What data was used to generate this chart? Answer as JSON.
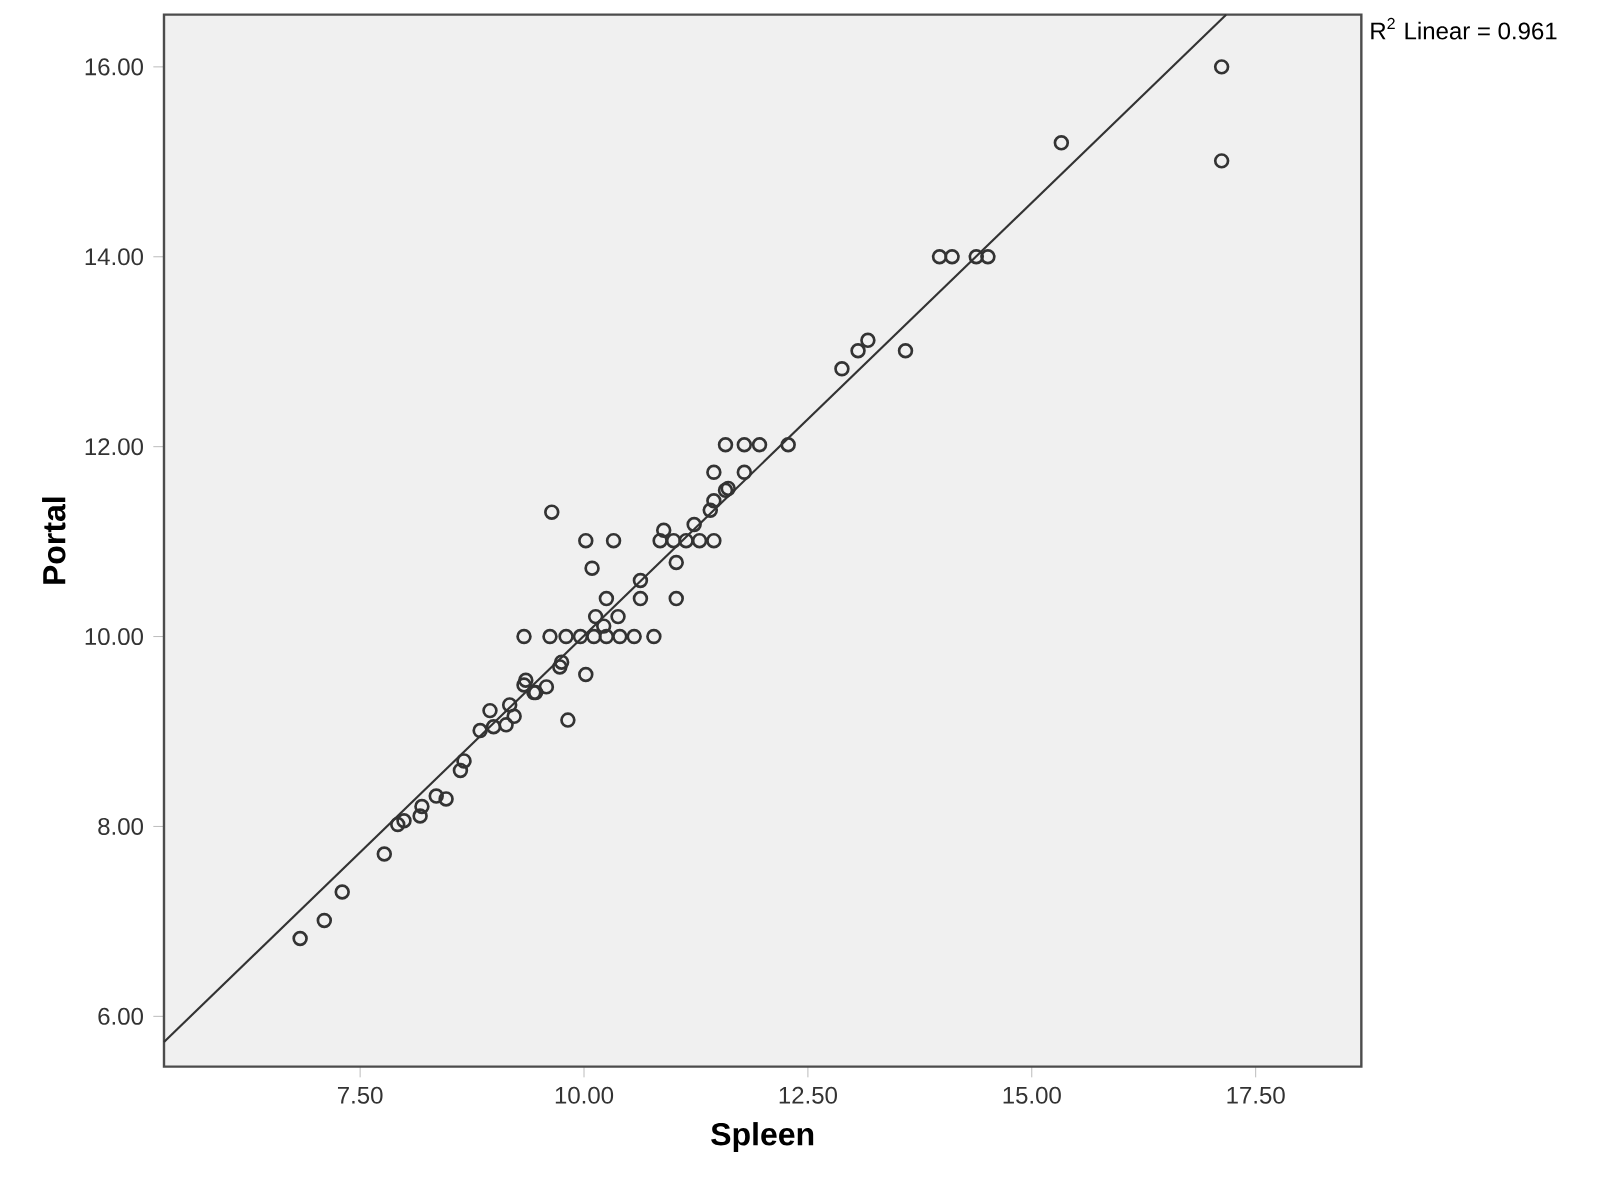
{
  "chart_data": {
    "type": "scatter",
    "xlabel": "Spleen",
    "ylabel": "Portal",
    "xlim": [
      5.31,
      18.68
    ],
    "ylim": [
      5.47,
      16.55
    ],
    "xticks": [
      {
        "value": 7.5,
        "label": "7.50"
      },
      {
        "value": 10,
        "label": "10.00"
      },
      {
        "value": 12.5,
        "label": "12.50"
      },
      {
        "value": 15,
        "label": "15.00"
      },
      {
        "value": 17.5,
        "label": "17.50"
      }
    ],
    "yticks": [
      {
        "value": 6,
        "label": "6.00"
      },
      {
        "value": 8,
        "label": "8.00"
      },
      {
        "value": 10,
        "label": "10.00"
      },
      {
        "value": 12,
        "label": "12.00"
      },
      {
        "value": 14,
        "label": "14.00"
      },
      {
        "value": 16,
        "label": "16.00"
      }
    ],
    "series": [
      {
        "marker": "circle",
        "color": "#333333",
        "x": [
          6.83,
          7.1,
          7.3,
          7.77,
          7.92,
          7.99,
          8.17,
          8.19,
          8.35,
          8.46,
          8.62,
          8.66,
          8.95,
          8.84,
          8.99,
          9.13,
          9.22,
          9.17,
          9.33,
          9.44,
          9.58,
          9.73,
          9.82,
          10.02,
          9.64,
          10.02,
          10.33,
          10.09,
          10.89,
          10.85,
          11.0,
          11.14,
          11.29,
          11.45,
          11.03,
          11.23,
          11.41,
          11.58,
          10.63,
          10.63,
          11.03,
          10.25,
          10.38,
          10.13,
          10.22,
          9.33,
          9.62,
          9.8,
          9.96,
          10.11,
          10.25,
          10.4,
          10.56,
          10.78,
          9.75,
          9.35,
          9.46,
          11.45,
          11.79,
          11.61,
          11.45,
          11.58,
          11.79,
          11.96,
          12.28,
          12.88,
          13.06,
          13.17,
          13.59,
          13.97,
          14.11,
          14.38,
          14.51,
          15.33,
          17.12,
          17.12
        ],
        "values": [
          6.82,
          7.01,
          7.31,
          7.71,
          8.02,
          8.06,
          8.11,
          8.21,
          8.32,
          8.29,
          8.59,
          8.69,
          9.22,
          9.01,
          9.05,
          9.07,
          9.16,
          9.28,
          9.49,
          9.41,
          9.47,
          9.68,
          9.12,
          9.6,
          11.31,
          11.01,
          11.01,
          10.72,
          11.12,
          11.01,
          11.01,
          11.01,
          11.01,
          11.01,
          10.78,
          11.18,
          11.33,
          11.54,
          10.59,
          10.4,
          10.4,
          10.4,
          10.21,
          10.21,
          10.11,
          10.0,
          10.0,
          10.0,
          10.0,
          10.0,
          10.0,
          10.0,
          10.0,
          10.0,
          9.73,
          9.54,
          9.41,
          11.73,
          11.73,
          11.56,
          11.43,
          12.02,
          12.02,
          12.02,
          12.02,
          12.82,
          13.01,
          13.12,
          13.01,
          14.0,
          14.0,
          14.0,
          14.0,
          15.2,
          16.0,
          15.01
        ]
      },
      {
        "type": "line",
        "marker": "none",
        "color": "#333333",
        "x": [
          5.31,
          17.17
        ],
        "values": [
          5.73,
          16.55
        ]
      }
    ],
    "annotations": [
      "R$^{2}$ Linear = 0.961"
    ]
  }
}
